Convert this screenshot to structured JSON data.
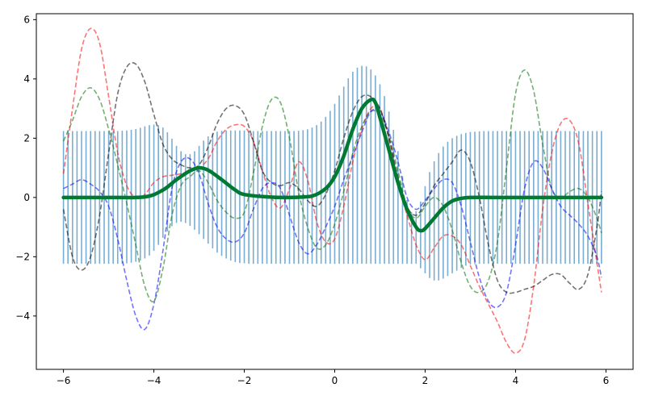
{
  "chart_data": {
    "type": "line",
    "title": "",
    "xlabel": "",
    "ylabel": "",
    "xlim": [
      -6.6,
      6.6
    ],
    "ylim": [
      -5.8,
      6.2
    ],
    "xticks": [
      -6,
      -4,
      -2,
      0,
      2,
      4,
      6
    ],
    "yticks": [
      -4,
      -2,
      0,
      2,
      4,
      6
    ],
    "xtick_labels": [
      "−6",
      "−4",
      "−2",
      "0",
      "2",
      "4",
      "6"
    ],
    "ytick_labels": [
      "−4",
      "−2",
      "0",
      "2",
      "4",
      "6"
    ],
    "grid": false,
    "mean": {
      "color": "#007a33",
      "x": [
        -6,
        -5,
        -4.2,
        -3.8,
        -3.5,
        -3.2,
        -3.0,
        -2.8,
        -2.5,
        -2.2,
        -2.0,
        -1.5,
        -1.0,
        -0.5,
        -0.2,
        0,
        0.2,
        0.4,
        0.6,
        0.8,
        0.9,
        1.0,
        1.2,
        1.4,
        1.6,
        1.8,
        1.9,
        2.0,
        2.2,
        2.4,
        2.6,
        2.8,
        3.0,
        3.5,
        4,
        5,
        5.9
      ],
      "y": [
        0,
        0,
        0.02,
        0.25,
        0.6,
        0.9,
        1.0,
        0.92,
        0.6,
        0.25,
        0.1,
        0.02,
        0.0,
        0.05,
        0.3,
        0.7,
        1.4,
        2.3,
        3.0,
        3.3,
        3.2,
        2.7,
        1.6,
        0.5,
        -0.4,
        -1.0,
        -1.12,
        -1.05,
        -0.7,
        -0.35,
        -0.12,
        -0.03,
        0,
        0,
        0,
        0,
        0
      ]
    },
    "uncertainty": {
      "color": "#1f77b4",
      "x": [
        -6.0,
        -5.9,
        -5.8,
        -5.7,
        -5.6,
        -5.5,
        -5.4,
        -5.3,
        -5.2,
        -5.1,
        -5.0,
        -4.9,
        -4.8,
        -4.7,
        -4.6,
        -4.5,
        -4.4,
        -4.3,
        -4.2,
        -4.1,
        -4.0,
        -3.9,
        -3.8,
        -3.7,
        -3.6,
        -3.5,
        -3.4,
        -3.3,
        -3.2,
        -3.1,
        -3.0,
        -2.9,
        -2.8,
        -2.7,
        -2.6,
        -2.5,
        -2.4,
        -2.3,
        -2.2,
        -2.1,
        -2.0,
        -1.9,
        -1.8,
        -1.7,
        -1.6,
        -1.5,
        -1.4,
        -1.3,
        -1.2,
        -1.1,
        -1.0,
        -0.9,
        -0.8,
        -0.7,
        -0.6,
        -0.5,
        -0.4,
        -0.3,
        -0.2,
        -0.1,
        0.0,
        0.1,
        0.2,
        0.3,
        0.4,
        0.5,
        0.6,
        0.7,
        0.8,
        0.9,
        1.0,
        1.1,
        1.2,
        1.3,
        1.4,
        1.5,
        1.6,
        1.7,
        1.8,
        1.9,
        2.0,
        2.1,
        2.2,
        2.3,
        2.4,
        2.5,
        2.6,
        2.7,
        2.8,
        2.9,
        3.0,
        3.1,
        3.2,
        3.3,
        3.4,
        3.5,
        3.6,
        3.7,
        3.8,
        3.9,
        4.0,
        4.1,
        4.2,
        4.3,
        4.4,
        4.5,
        4.6,
        4.7,
        4.8,
        4.9,
        5.0,
        5.1,
        5.2,
        5.3,
        5.4,
        5.5,
        5.6,
        5.7,
        5.8,
        5.9
      ],
      "lower": [
        -2.24,
        -2.24,
        -2.24,
        -2.24,
        -2.24,
        -2.24,
        -2.24,
        -2.24,
        -2.24,
        -2.24,
        -2.24,
        -2.24,
        -2.24,
        -2.23,
        -2.22,
        -2.2,
        -2.17,
        -2.13,
        -2.06,
        -1.96,
        -1.8,
        -1.6,
        -1.36,
        -1.15,
        -0.97,
        -0.86,
        -0.82,
        -0.86,
        -0.96,
        -1.09,
        -1.24,
        -1.4,
        -1.56,
        -1.72,
        -1.86,
        -1.97,
        -2.06,
        -2.13,
        -2.18,
        -2.21,
        -2.22,
        -2.24,
        -2.24,
        -2.24,
        -2.24,
        -2.24,
        -2.24,
        -2.24,
        -2.24,
        -2.24,
        -2.24,
        -2.24,
        -2.24,
        -2.24,
        -2.24,
        -2.24,
        -2.24,
        -2.24,
        -2.24,
        -2.24,
        -2.24,
        -2.24,
        -2.24,
        -2.24,
        -2.24,
        -2.24,
        -2.24,
        -2.24,
        -2.24,
        -2.24,
        -2.24,
        -2.24,
        -2.24,
        -2.24,
        -2.24,
        -2.24,
        -2.24,
        -2.24,
        -2.24,
        -2.39,
        -2.56,
        -2.72,
        -2.8,
        -2.8,
        -2.74,
        -2.65,
        -2.56,
        -2.47,
        -2.38,
        -2.3,
        -2.26,
        -2.25,
        -2.24,
        -2.24,
        -2.24,
        -2.24,
        -2.24,
        -2.24,
        -2.24,
        -2.24,
        -2.24,
        -2.24,
        -2.24,
        -2.24,
        -2.24,
        -2.24,
        -2.24,
        -2.24,
        -2.24,
        -2.24,
        -2.24,
        -2.24,
        -2.24,
        -2.24,
        -2.24,
        -2.24,
        -2.24,
        -2.24,
        -2.24,
        -2.24
      ],
      "upper": [
        2.24,
        2.24,
        2.24,
        2.24,
        2.24,
        2.24,
        2.24,
        2.24,
        2.24,
        2.24,
        2.24,
        2.24,
        2.24,
        2.25,
        2.26,
        2.28,
        2.31,
        2.35,
        2.4,
        2.44,
        2.46,
        2.44,
        2.36,
        2.2,
        1.98,
        1.74,
        1.56,
        1.46,
        1.46,
        1.56,
        1.74,
        1.92,
        2.06,
        2.16,
        2.22,
        2.25,
        2.26,
        2.26,
        2.26,
        2.26,
        2.26,
        2.25,
        2.24,
        2.24,
        2.24,
        2.24,
        2.24,
        2.24,
        2.24,
        2.24,
        2.24,
        2.24,
        2.25,
        2.27,
        2.3,
        2.36,
        2.44,
        2.56,
        2.72,
        2.92,
        3.16,
        3.44,
        3.74,
        4.02,
        4.24,
        4.38,
        4.44,
        4.42,
        4.32,
        4.12,
        3.82,
        3.42,
        2.9,
        2.28,
        1.56,
        0.72,
        -0.08,
        -0.5,
        -0.46,
        -0.14,
        0.38,
        0.86,
        1.22,
        1.5,
        1.72,
        1.88,
        2.0,
        2.08,
        2.14,
        2.18,
        2.21,
        2.22,
        2.23,
        2.24,
        2.24,
        2.24,
        2.24,
        2.24,
        2.24,
        2.24,
        2.24,
        2.24,
        2.24,
        2.24,
        2.24,
        2.24,
        2.24,
        2.24,
        2.24,
        2.24,
        2.24,
        2.24,
        2.24,
        2.24,
        2.24,
        2.24,
        2.24,
        2.24,
        2.24,
        2.24
      ]
    },
    "samples": [
      {
        "color": "#ff0000",
        "x": [
          -6.0,
          -5.8,
          -5.6,
          -5.4,
          -5.2,
          -5.0,
          -4.8,
          -4.6,
          -4.4,
          -4.2,
          -4.0,
          -3.8,
          -3.6,
          -3.4,
          -3.2,
          -3.0,
          -2.8,
          -2.6,
          -2.4,
          -2.2,
          -2.0,
          -1.8,
          -1.6,
          -1.4,
          -1.2,
          -1.0,
          -0.8,
          -0.6,
          -0.4,
          -0.2,
          0.0,
          0.2,
          0.4,
          0.6,
          0.8,
          1.0,
          1.2,
          1.4,
          1.6,
          1.8,
          2.0,
          2.2,
          2.4,
          2.6,
          2.8,
          3.0,
          3.2,
          3.4,
          3.6,
          3.8,
          4.0,
          4.2,
          4.4,
          4.6,
          4.8,
          5.0,
          5.2,
          5.4,
          5.6,
          5.8,
          5.9
        ],
        "y": [
          0.8,
          3.0,
          5.0,
          5.7,
          5.2,
          3.4,
          1.5,
          0.4,
          0.0,
          0.1,
          0.5,
          0.7,
          0.75,
          0.8,
          0.9,
          1.0,
          1.3,
          1.9,
          2.3,
          2.45,
          2.4,
          1.9,
          0.9,
          0.0,
          -0.35,
          0.3,
          1.2,
          0.6,
          -0.8,
          -1.5,
          -1.4,
          -0.3,
          1.2,
          2.3,
          3.0,
          3.0,
          2.0,
          0.5,
          -0.6,
          -1.6,
          -2.1,
          -1.7,
          -1.3,
          -1.3,
          -1.6,
          -2.3,
          -3.0,
          -3.6,
          -4.2,
          -4.9,
          -5.25,
          -4.8,
          -3.0,
          -0.4,
          1.5,
          2.5,
          2.6,
          1.8,
          -0.2,
          -2.2,
          -3.2
        ]
      },
      {
        "color": "#007000",
        "x": [
          -6.0,
          -5.8,
          -5.6,
          -5.4,
          -5.2,
          -5.0,
          -4.8,
          -4.6,
          -4.4,
          -4.2,
          -4.0,
          -3.8,
          -3.6,
          -3.4,
          -3.2,
          -3.0,
          -2.8,
          -2.6,
          -2.4,
          -2.2,
          -2.0,
          -1.8,
          -1.6,
          -1.4,
          -1.2,
          -1.0,
          -0.8,
          -0.6,
          -0.4,
          -0.2,
          0.0,
          0.2,
          0.4,
          0.6,
          0.8,
          1.0,
          1.2,
          1.4,
          1.6,
          1.8,
          2.0,
          2.2,
          2.4,
          2.6,
          2.8,
          3.0,
          3.2,
          3.4,
          3.6,
          3.8,
          4.0,
          4.2,
          4.4,
          4.6,
          4.8,
          5.0,
          5.2,
          5.4,
          5.6,
          5.8,
          5.9
        ],
        "y": [
          1.9,
          2.6,
          3.4,
          3.7,
          3.3,
          2.3,
          1.1,
          -0.2,
          -1.6,
          -3.0,
          -3.5,
          -2.4,
          -0.6,
          0.4,
          0.7,
          0.9,
          0.5,
          -0.1,
          -0.5,
          -0.7,
          -0.5,
          0.8,
          2.4,
          3.3,
          3.2,
          2.0,
          0.2,
          -1.0,
          -1.7,
          -1.6,
          -0.9,
          0.2,
          1.5,
          2.4,
          2.9,
          2.8,
          2.1,
          0.9,
          -0.3,
          -0.7,
          -0.3,
          0.0,
          -0.3,
          -1.1,
          -2.2,
          -3.0,
          -3.2,
          -2.8,
          -1.5,
          1.0,
          3.5,
          4.3,
          3.6,
          1.8,
          0.3,
          0.0,
          0.2,
          0.3,
          0.0,
          -0.7,
          -1.2
        ]
      },
      {
        "color": "#0000ff",
        "x": [
          -6.0,
          -5.8,
          -5.6,
          -5.4,
          -5.2,
          -5.0,
          -4.8,
          -4.6,
          -4.4,
          -4.2,
          -4.0,
          -3.8,
          -3.6,
          -3.4,
          -3.2,
          -3.0,
          -2.8,
          -2.6,
          -2.4,
          -2.2,
          -2.0,
          -1.8,
          -1.6,
          -1.4,
          -1.2,
          -1.0,
          -0.8,
          -0.6,
          -0.4,
          -0.2,
          0.0,
          0.2,
          0.4,
          0.6,
          0.8,
          1.0,
          1.2,
          1.4,
          1.6,
          1.8,
          2.0,
          2.2,
          2.4,
          2.6,
          2.8,
          3.0,
          3.2,
          3.4,
          3.6,
          3.8,
          4.0,
          4.2,
          4.4,
          4.6,
          4.8,
          5.0,
          5.2,
          5.4,
          5.6,
          5.8,
          5.9
        ],
        "y": [
          0.3,
          0.45,
          0.6,
          0.45,
          0.2,
          -0.3,
          -1.4,
          -2.8,
          -4.0,
          -4.45,
          -3.6,
          -1.8,
          0.3,
          1.2,
          1.3,
          0.8,
          -0.2,
          -1.0,
          -1.4,
          -1.5,
          -1.2,
          -0.4,
          0.3,
          0.5,
          0.3,
          -0.6,
          -1.5,
          -1.9,
          -1.6,
          -1.0,
          -0.3,
          0.6,
          1.4,
          2.2,
          2.9,
          2.9,
          2.2,
          1.2,
          0.0,
          -0.4,
          -0.1,
          0.3,
          0.6,
          0.5,
          -0.3,
          -1.5,
          -2.7,
          -3.5,
          -3.7,
          -3.2,
          -1.6,
          0.3,
          1.2,
          1.0,
          0.3,
          -0.3,
          -0.6,
          -0.9,
          -1.3,
          -2.0,
          -2.7
        ]
      },
      {
        "color": "#000000",
        "x": [
          -6.0,
          -5.8,
          -5.6,
          -5.4,
          -5.2,
          -5.0,
          -4.8,
          -4.6,
          -4.4,
          -4.2,
          -4.0,
          -3.8,
          -3.6,
          -3.4,
          -3.2,
          -3.0,
          -2.8,
          -2.6,
          -2.4,
          -2.2,
          -2.0,
          -1.8,
          -1.6,
          -1.4,
          -1.2,
          -1.0,
          -0.8,
          -0.6,
          -0.4,
          -0.2,
          0.0,
          0.2,
          0.4,
          0.6,
          0.8,
          1.0,
          1.2,
          1.4,
          1.6,
          1.8,
          2.0,
          2.2,
          2.4,
          2.6,
          2.8,
          3.0,
          3.2,
          3.4,
          3.6,
          3.8,
          4.0,
          4.2,
          4.4,
          4.6,
          4.8,
          5.0,
          5.2,
          5.4,
          5.6,
          5.8,
          5.9
        ],
        "y": [
          -0.4,
          -2.0,
          -2.45,
          -2.0,
          -0.6,
          1.5,
          3.5,
          4.4,
          4.5,
          3.9,
          2.8,
          1.8,
          1.3,
          1.1,
          1.0,
          1.1,
          1.7,
          2.5,
          3.0,
          3.1,
          2.8,
          1.9,
          0.9,
          0.5,
          0.4,
          0.5,
          0.3,
          -0.1,
          -0.3,
          0.1,
          0.9,
          2.0,
          2.9,
          3.4,
          3.4,
          3.0,
          2.0,
          0.7,
          -0.3,
          -0.6,
          -0.2,
          0.4,
          0.8,
          1.2,
          1.6,
          1.2,
          0.0,
          -1.6,
          -2.8,
          -3.2,
          -3.2,
          -3.1,
          -3.0,
          -2.8,
          -2.6,
          -2.6,
          -2.9,
          -3.1,
          -2.6,
          -1.0,
          0.2
        ]
      }
    ]
  }
}
